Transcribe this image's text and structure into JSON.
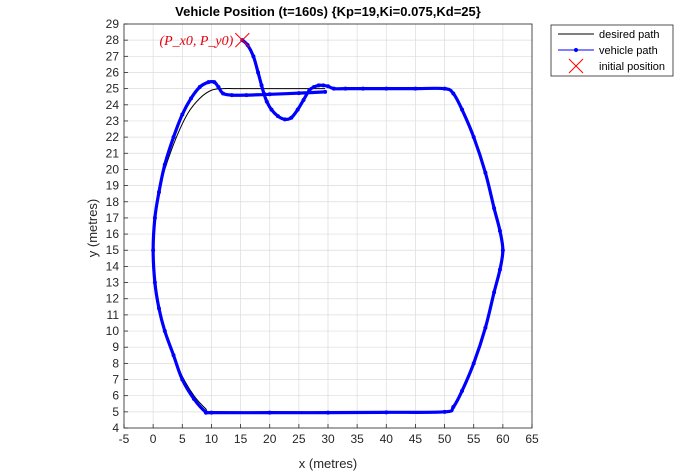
{
  "chart_data": {
    "type": "line",
    "title": "Vehicle Position (t=160s) {Kp=19,Ki=0.075,Kd=25}",
    "xlabel": "x (metres)",
    "ylabel": "y (metres)",
    "xlim": [
      -5,
      65
    ],
    "ylim": [
      4,
      29
    ],
    "xticks": [
      -5,
      0,
      5,
      10,
      15,
      20,
      25,
      30,
      35,
      40,
      45,
      50,
      55,
      60,
      65
    ],
    "yticks": [
      4,
      5,
      6,
      7,
      8,
      9,
      10,
      11,
      12,
      13,
      14,
      15,
      16,
      17,
      18,
      19,
      20,
      21,
      22,
      23,
      24,
      25,
      26,
      27,
      28,
      29
    ],
    "grid": true,
    "legend_position": "outside-top-right",
    "annotation": {
      "text": "(P_x0, P_y0)",
      "x": 15.3,
      "y": 28,
      "color": "#e8000b"
    },
    "series": [
      {
        "name": "desired path",
        "style": "line",
        "color": "#000000",
        "x": [
          29.5,
          25,
          20,
          15,
          12,
          10,
          8,
          6,
          4,
          2,
          1,
          0.3,
          0,
          0.3,
          1,
          2,
          3.5,
          5,
          7,
          9,
          10,
          20,
          30,
          40,
          50,
          51.5,
          53,
          55,
          57,
          58.5,
          59.5,
          60,
          59.5,
          58.5,
          57,
          55,
          53,
          51.5,
          50,
          40,
          30.5
        ],
        "y": [
          25.0,
          25.0,
          25.0,
          25.0,
          25.0,
          24.9,
          24.4,
          23.5,
          22.0,
          20.0,
          18.6,
          17.0,
          15.0,
          13.0,
          11.4,
          10.0,
          8.5,
          7.2,
          6.0,
          5.2,
          5.0,
          5.0,
          5.0,
          5.0,
          5.0,
          5.3,
          6.3,
          8.0,
          10.2,
          12.4,
          13.8,
          15.0,
          16.2,
          17.6,
          19.8,
          22.0,
          23.7,
          24.7,
          25.0,
          25.0,
          25.0
        ]
      },
      {
        "name": "vehicle path",
        "style": "line-marker",
        "color": "#0000ff",
        "x": [
          15.3,
          16.2,
          17.2,
          18.0,
          18.6,
          19.0,
          19.5,
          20.3,
          21.4,
          22.6,
          23.7,
          24.8,
          25.8,
          26.8,
          27.6,
          28.4,
          29.2,
          30.0,
          31.0,
          33.0,
          36.0,
          40,
          45,
          50,
          51.5,
          53,
          55,
          57,
          58.5,
          59.5,
          60,
          59.5,
          58.5,
          57,
          55,
          53,
          51.5,
          50,
          40,
          30,
          20,
          10,
          9,
          7,
          5,
          3.5,
          2,
          1,
          0.3,
          0,
          0.3,
          1,
          2,
          3.5,
          5,
          6.5,
          8,
          9.5,
          10.5,
          11.2,
          12.0,
          13.5,
          16,
          20,
          25,
          29.5
        ],
        "y": [
          28.0,
          27.7,
          27.0,
          26.0,
          25.2,
          24.7,
          24.2,
          23.7,
          23.3,
          23.1,
          23.2,
          23.7,
          24.3,
          24.9,
          25.1,
          25.2,
          25.2,
          25.15,
          25.0,
          25.0,
          25.0,
          25.0,
          25.0,
          25.0,
          24.7,
          23.7,
          22.0,
          19.8,
          17.6,
          16.2,
          15.0,
          13.8,
          12.4,
          10.2,
          8.0,
          6.3,
          5.3,
          5.0,
          4.97,
          4.95,
          4.95,
          4.95,
          5.0,
          5.8,
          7.0,
          8.5,
          10.0,
          11.4,
          13.0,
          15.0,
          17.0,
          18.6,
          20.3,
          22.0,
          23.4,
          24.4,
          25.1,
          25.4,
          25.4,
          25.1,
          24.7,
          24.6,
          24.6,
          24.65,
          24.72,
          24.8
        ]
      },
      {
        "name": "initial position",
        "style": "marker-x",
        "color": "#ff0000",
        "x": [
          15.3
        ],
        "y": [
          28.0
        ]
      }
    ]
  }
}
